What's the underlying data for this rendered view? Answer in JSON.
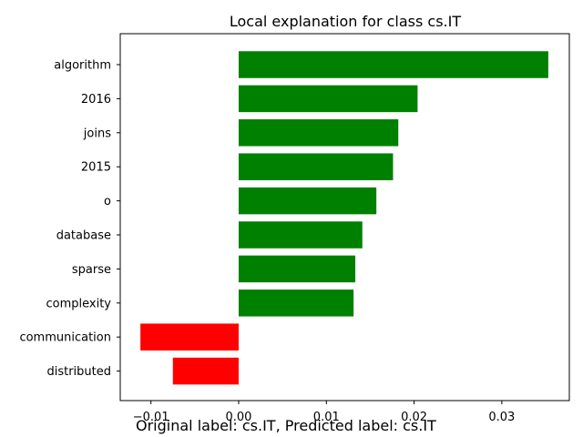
{
  "chart_data": {
    "type": "bar",
    "orientation": "horizontal",
    "title": "Local explanation for class cs.IT",
    "categories": [
      "algorithm",
      "2016",
      "joins",
      "2015",
      "o",
      "database",
      "sparse",
      "complexity",
      "communication",
      "distributed"
    ],
    "values": [
      0.0353,
      0.0204,
      0.0182,
      0.0176,
      0.0157,
      0.0141,
      0.0133,
      0.0131,
      -0.0112,
      -0.0075
    ],
    "xlim": [
      -0.0135,
      0.0377
    ],
    "xticks": [
      -0.01,
      0.0,
      0.01,
      0.02,
      0.03
    ],
    "xtick_labels": [
      "−0.01",
      "0.00",
      "0.01",
      "0.02",
      "0.03"
    ],
    "xlabel": "",
    "ylabel": "",
    "grid": false,
    "colors": {
      "positive": "#008000",
      "negative": "#ff0000"
    }
  },
  "footer_text": "Original label: cs.IT, Predicted label: cs.IT"
}
